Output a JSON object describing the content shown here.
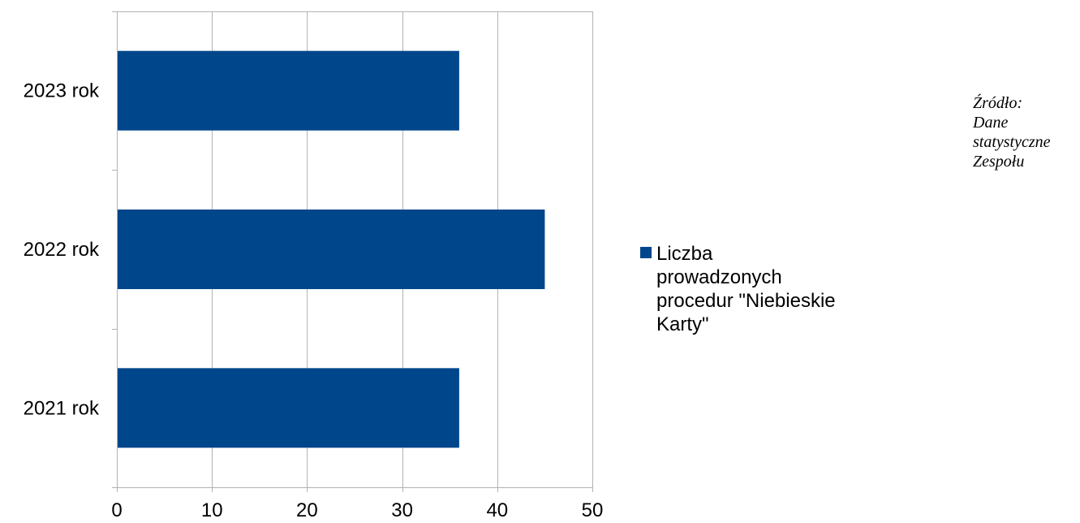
{
  "chart_data": {
    "type": "bar",
    "orientation": "horizontal",
    "categories": [
      "2021 rok",
      "2022 rok",
      "2023 rok"
    ],
    "series": [
      {
        "name": "Liczba prowadzonych procedur \"Niebieskie Karty\"",
        "values": [
          36,
          45,
          36
        ],
        "color": "#00468b"
      }
    ],
    "xlim": [
      0,
      50
    ],
    "x_ticks": [
      "0",
      "10",
      "20",
      "30",
      "40",
      "50"
    ],
    "grid": true,
    "legend_position": "right"
  },
  "source_note": {
    "lines": [
      "Źródło:",
      "Dane",
      "statystyczne",
      "Zespołu"
    ]
  }
}
